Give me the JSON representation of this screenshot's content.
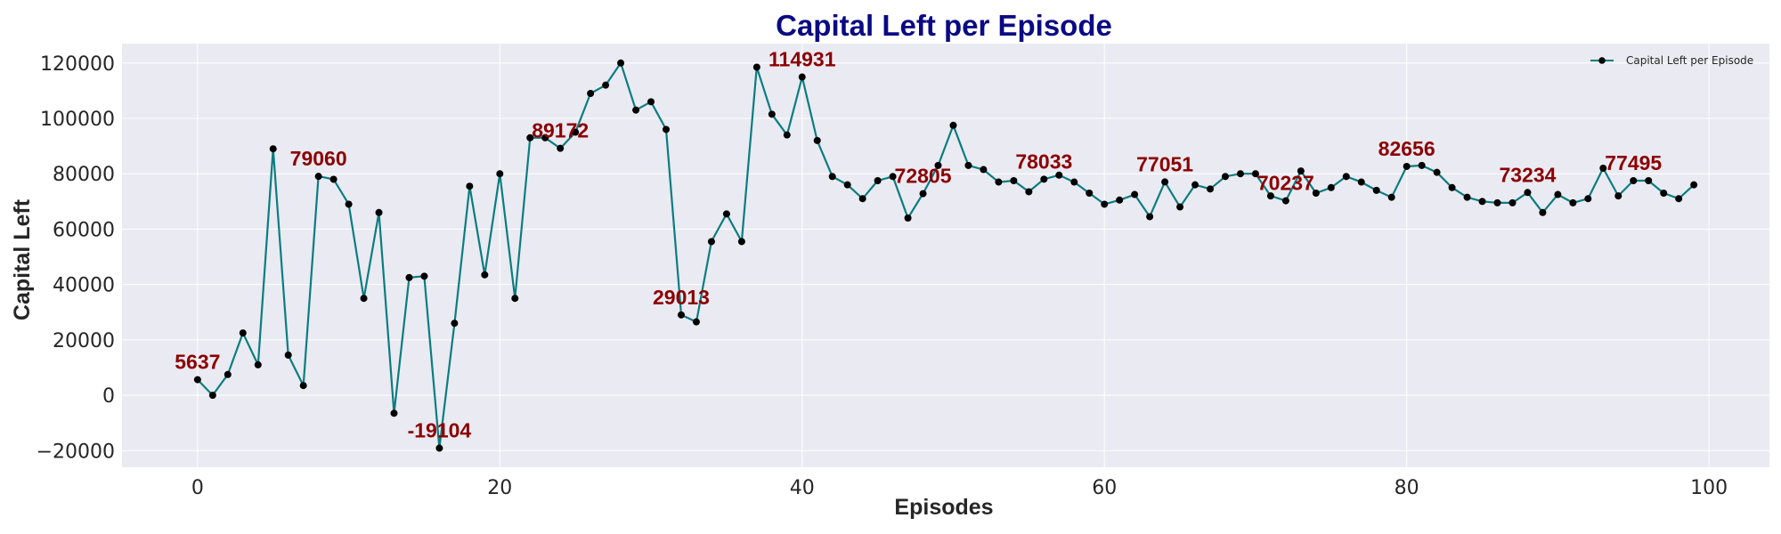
{
  "colors": {
    "plot_background": "#eaeaf2",
    "grid": "#ffffff",
    "line": "#0b7d80",
    "marker": "#000000",
    "title": "#0a0a84",
    "annotation": "#8b0000"
  },
  "chart_data": {
    "type": "line",
    "title": "Capital Left per Episode",
    "xlabel": "Episodes",
    "ylabel": "Capital Left",
    "xlim": [
      -5,
      104
    ],
    "ylim": [
      -26000,
      127000
    ],
    "xticks": [
      0,
      20,
      40,
      60,
      80,
      100
    ],
    "yticks": [
      -20000,
      0,
      20000,
      40000,
      60000,
      80000,
      100000,
      120000
    ],
    "grid": true,
    "legend_position": "top-right",
    "series": [
      {
        "name": "Capital Left per Episode",
        "x": [
          0,
          1,
          2,
          3,
          4,
          5,
          6,
          7,
          8,
          9,
          10,
          11,
          12,
          13,
          14,
          15,
          16,
          17,
          18,
          19,
          20,
          21,
          22,
          23,
          24,
          25,
          26,
          27,
          28,
          29,
          30,
          31,
          32,
          33,
          34,
          35,
          36,
          37,
          38,
          39,
          40,
          41,
          42,
          43,
          44,
          45,
          46,
          47,
          48,
          49,
          50,
          51,
          52,
          53,
          54,
          55,
          56,
          57,
          58,
          59,
          60,
          61,
          62,
          63,
          64,
          65,
          66,
          67,
          68,
          69,
          70,
          71,
          72,
          73,
          74,
          75,
          76,
          77,
          78,
          79,
          80,
          81,
          82,
          83,
          84,
          85,
          86,
          87,
          88,
          89,
          90,
          91,
          92,
          93,
          94,
          95,
          96,
          97,
          98,
          99
        ],
        "y": [
          5637,
          0,
          7500,
          22500,
          11000,
          89000,
          14500,
          3500,
          79060,
          78000,
          69000,
          35000,
          66000,
          -6500,
          42500,
          43000,
          -19104,
          26000,
          75500,
          43500,
          80000,
          35000,
          93000,
          93000,
          89172,
          95000,
          109000,
          112000,
          120000,
          103000,
          106000,
          96000,
          29013,
          26500,
          55500,
          65500,
          55500,
          118500,
          101500,
          94000,
          114931,
          92000,
          79000,
          76000,
          71000,
          77500,
          79000,
          64000,
          72805,
          83000,
          97500,
          83000,
          81500,
          77000,
          77500,
          73500,
          78033,
          79500,
          77000,
          73000,
          69000,
          70500,
          72500,
          64500,
          77051,
          68000,
          76000,
          74500,
          79000,
          80000,
          80000,
          72000,
          70237,
          81000,
          73000,
          75000,
          79000,
          77000,
          74000,
          71500,
          82656,
          83000,
          80500,
          75000,
          71500,
          70000,
          69500,
          69500,
          73234,
          66000,
          72500,
          69500,
          71000,
          82000,
          72000,
          77495,
          77500,
          73000,
          71000,
          76000
        ],
        "annotations": [
          {
            "x": 0,
            "y": 5637,
            "text": "5637"
          },
          {
            "x": 8,
            "y": 79060,
            "text": "79060"
          },
          {
            "x": 16,
            "y": -19104,
            "text": "-19104"
          },
          {
            "x": 24,
            "y": 89172,
            "text": "89172"
          },
          {
            "x": 32,
            "y": 29013,
            "text": "29013"
          },
          {
            "x": 40,
            "y": 114931,
            "text": "114931"
          },
          {
            "x": 48,
            "y": 72805,
            "text": "72805"
          },
          {
            "x": 56,
            "y": 78033,
            "text": "78033"
          },
          {
            "x": 64,
            "y": 77051,
            "text": "77051"
          },
          {
            "x": 72,
            "y": 70237,
            "text": "70237"
          },
          {
            "x": 80,
            "y": 82656,
            "text": "82656"
          },
          {
            "x": 88,
            "y": 73234,
            "text": "73234"
          },
          {
            "x": 95,
            "y": 77495,
            "text": "77495"
          }
        ]
      }
    ]
  }
}
